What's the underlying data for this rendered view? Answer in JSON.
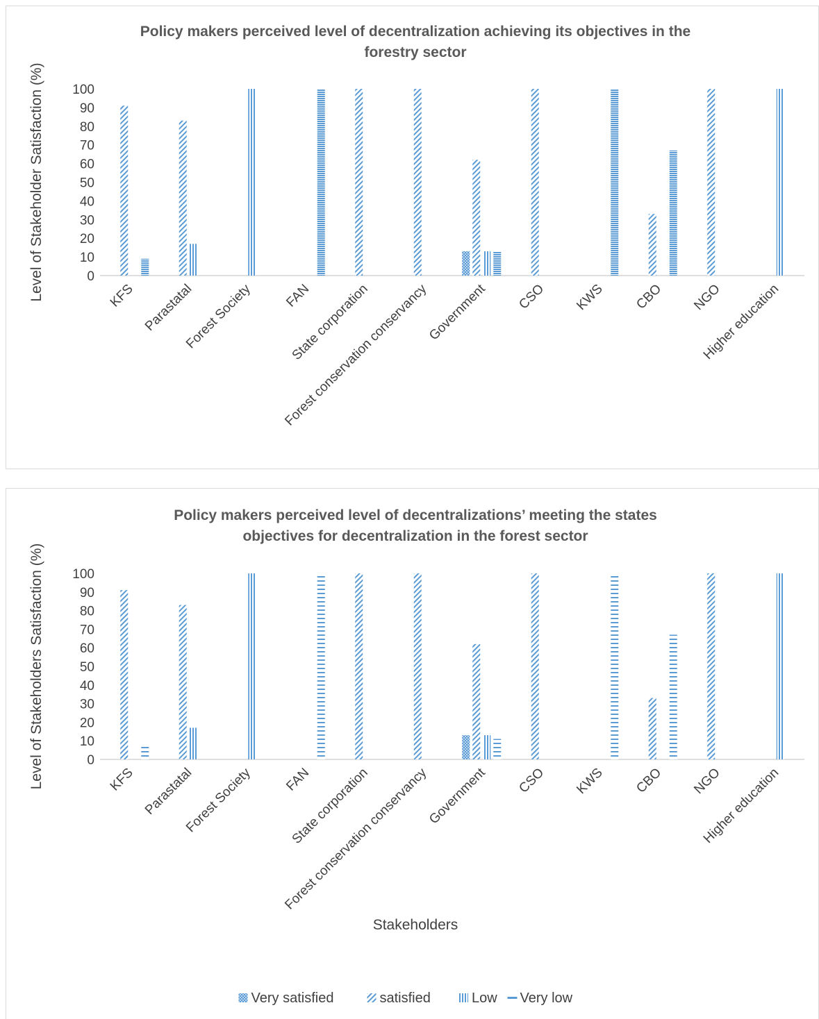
{
  "colors": {
    "bar": "#5b9bd5",
    "axis": "#bfbfbf",
    "text": "#404040",
    "title": "#595959"
  },
  "legend": {
    "placement": "bottom",
    "items": [
      "Very satisfied",
      "satisfied",
      "Low",
      "Very low"
    ]
  },
  "chart_data": [
    {
      "type": "bar",
      "title_lines": [
        "Policy makers perceived level of  decentralization  achieving its objectives in the",
        "forestry sector"
      ],
      "ylabel": "Level of Stakeholder Satisfaction (%)",
      "xlabel": "",
      "ylim": [
        0,
        100
      ],
      "yticks": [
        0,
        10,
        20,
        30,
        40,
        50,
        60,
        70,
        80,
        90,
        100
      ],
      "categories": [
        "KFS",
        "Parastatal",
        "Forest Society",
        "FAN",
        "State corporation",
        "Forest conservation conservancy",
        "Government",
        "CSO",
        "KWS",
        "CBO",
        "NGO",
        "Higher education"
      ],
      "series": [
        {
          "name": "Very satisfied",
          "pattern": "checker",
          "values": [
            0,
            0,
            0,
            0,
            0,
            0,
            13,
            0,
            0,
            0,
            0,
            0
          ]
        },
        {
          "name": "satisfied",
          "pattern": "diag",
          "values": [
            91,
            83,
            0,
            0,
            100,
            100,
            62,
            100,
            0,
            33,
            100,
            0
          ]
        },
        {
          "name": "Low",
          "pattern": "vert",
          "values": [
            0,
            17,
            100,
            0,
            0,
            0,
            13,
            0,
            0,
            0,
            0,
            100
          ]
        },
        {
          "name": "Very low",
          "pattern": "horiz-dense",
          "values": [
            9,
            0,
            0,
            100,
            0,
            0,
            13,
            0,
            100,
            67,
            0,
            0
          ]
        }
      ]
    },
    {
      "type": "bar",
      "title_lines": [
        "Policy makers perceived level of decentralizations’ meeting the states",
        "objectives for decentralization in the forest sector"
      ],
      "ylabel": "Level of Stakeholders Satisfaction (%)",
      "xlabel": "Stakeholders",
      "ylim": [
        0,
        100
      ],
      "yticks": [
        0,
        10,
        20,
        30,
        40,
        50,
        60,
        70,
        80,
        90,
        100
      ],
      "categories": [
        "KFS",
        "Parastatal",
        "Forest Society",
        "FAN",
        "State corporation",
        "Forest conservation conservancy",
        "Government",
        "CSO",
        "KWS",
        "CBO",
        "NGO",
        "Higher education"
      ],
      "series": [
        {
          "name": "Very satisfied",
          "pattern": "checker",
          "values": [
            0,
            0,
            0,
            0,
            0,
            0,
            13,
            0,
            0,
            0,
            0,
            0
          ]
        },
        {
          "name": "satisfied",
          "pattern": "diag",
          "values": [
            91,
            83,
            0,
            0,
            100,
            100,
            62,
            100,
            0,
            33,
            100,
            0
          ]
        },
        {
          "name": "Low",
          "pattern": "vert",
          "values": [
            0,
            17,
            100,
            0,
            0,
            0,
            13,
            0,
            0,
            0,
            0,
            100
          ]
        },
        {
          "name": "Very low",
          "pattern": "horiz-sparse",
          "values": [
            7,
            0,
            0,
            100,
            0,
            0,
            11,
            0,
            100,
            67,
            0,
            0
          ]
        }
      ]
    }
  ]
}
